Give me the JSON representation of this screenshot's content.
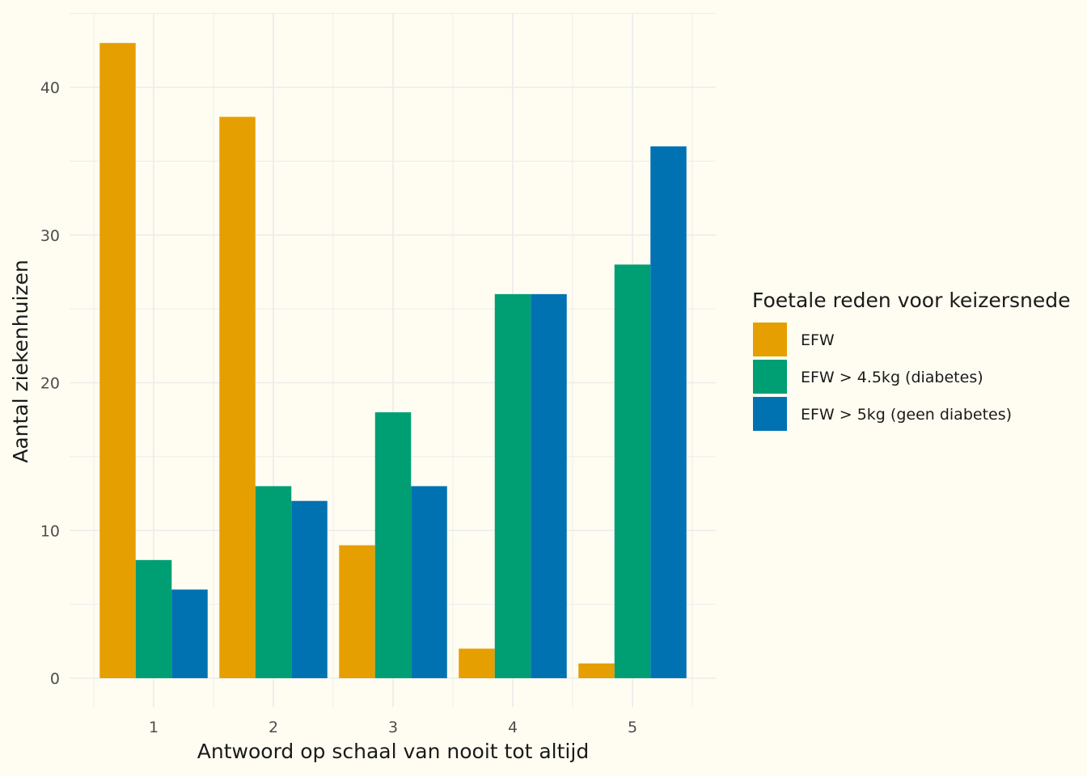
{
  "chart_data": {
    "type": "bar",
    "categories": [
      "1",
      "2",
      "3",
      "4",
      "5"
    ],
    "series": [
      {
        "name": "EFW",
        "color": "#E69F00",
        "values": [
          43,
          38,
          9,
          2,
          1
        ]
      },
      {
        "name": "EFW > 4.5kg (diabetes)",
        "color": "#009E73",
        "values": [
          8,
          13,
          18,
          26,
          28
        ]
      },
      {
        "name": "EFW > 5kg (geen diabetes)",
        "color": "#0072B2",
        "values": [
          6,
          12,
          13,
          26,
          36
        ]
      }
    ],
    "xlabel": "Antwoord op schaal van nooit tot altijd",
    "ylabel": "Aantal ziekenhuizen",
    "ylim": [
      0,
      45
    ],
    "yticks": [
      0,
      10,
      20,
      30,
      40
    ],
    "legend_title": "Foetale reden voor keizersnede",
    "legend_position": "right",
    "grid": true,
    "background": "#FFFDF2",
    "grid_color": "#EBEBEB"
  }
}
